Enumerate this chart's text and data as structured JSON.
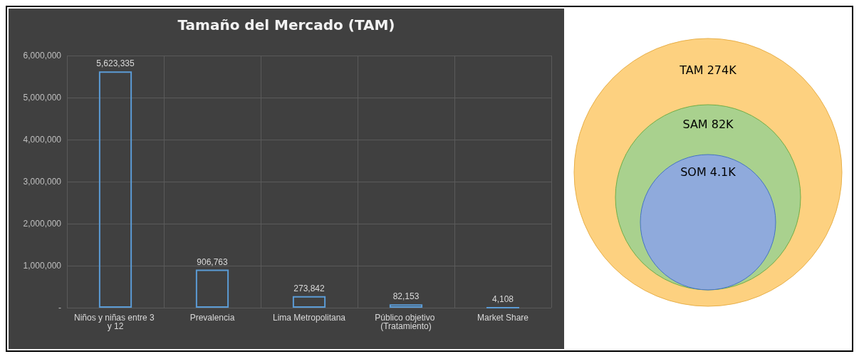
{
  "chart_data": [
    {
      "type": "bar",
      "title": "Tamaño del Mercado (TAM)",
      "categories": [
        "Niños y niñas entre 3 y 12",
        "Prevalencia",
        "Lima Metropolitana",
        "Público objetivo (Tratamiento)",
        "Market Share"
      ],
      "values": [
        5623335,
        906763,
        273842,
        82153,
        4108
      ],
      "color": "#5b9bd5",
      "value_labels": [
        "5,623,335",
        "906,763",
        "273,842",
        "82,153",
        "4,108"
      ],
      "grid": true,
      "ylim": [
        0,
        6000000
      ],
      "yticks": [
        {
          "value": 0,
          "label": "-"
        },
        {
          "value": 1000000,
          "label": "1,000,000"
        },
        {
          "value": 2000000,
          "label": "2,000,000"
        },
        {
          "value": 3000000,
          "label": "3,000,000"
        },
        {
          "value": 4000000,
          "label": "4,000,000"
        },
        {
          "value": 5000000,
          "label": "5,000,000"
        },
        {
          "value": 6000000,
          "label": "6,000,000"
        }
      ]
    },
    {
      "type": "other",
      "annotations": [
        "TAM 274K",
        "SAM 82K",
        "SOM 4.1K"
      ],
      "colors": [
        "#fdd180",
        "#a9d18e",
        "#8faadc"
      ]
    }
  ]
}
